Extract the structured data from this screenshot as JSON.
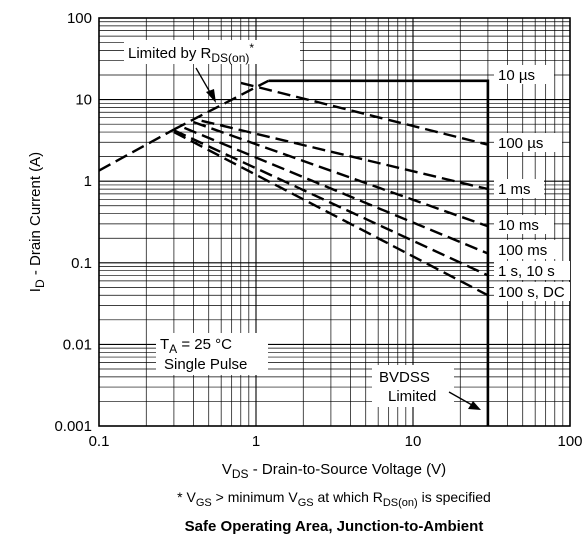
{
  "chart_data": {
    "type": "line",
    "title": "Safe Operating Area, Junction-to-Ambient",
    "xlabel": {
      "main": "V",
      "sub": "DS",
      "rest": " - Drain-to-Source Voltage (V)"
    },
    "ylabel": {
      "main": "I",
      "sub": "D",
      "rest": " - Drain Current (A)"
    },
    "x_scale": "log",
    "y_scale": "log",
    "xlim": [
      0.1,
      100
    ],
    "ylim": [
      0.001,
      100
    ],
    "grid": true,
    "x_ticks": [
      {
        "value": 0.1,
        "label": "0.1"
      },
      {
        "value": 1,
        "label": "1"
      },
      {
        "value": 10,
        "label": "10"
      },
      {
        "value": 100,
        "label": "100"
      }
    ],
    "y_ticks": [
      {
        "value": 100,
        "label": "100"
      },
      {
        "value": 10,
        "label": "10"
      },
      {
        "value": 1,
        "label": "1"
      },
      {
        "value": 0.1,
        "label": "0.1"
      },
      {
        "value": 0.01,
        "label": "0.01"
      },
      {
        "value": 0.001,
        "label": "0.001"
      }
    ],
    "series": [
      {
        "name": "10 µs",
        "style": "solid",
        "points": [
          [
            1.2,
            17
          ],
          [
            30,
            17
          ],
          [
            30,
            0.001
          ]
        ]
      },
      {
        "name": "",
        "style": "dashed",
        "points": [
          [
            0.1,
            1.35
          ],
          [
            0.3,
            4.3
          ]
        ]
      },
      {
        "name": "",
        "style": "dashed",
        "points": [
          [
            0.3,
            4.3
          ],
          [
            1.2,
            17
          ]
        ]
      },
      {
        "name": "100 µs",
        "style": "dashed",
        "points": [
          [
            0.8,
            16
          ],
          [
            30,
            2.8
          ]
        ]
      },
      {
        "name": "1 ms",
        "style": "dashed",
        "points": [
          [
            0.45,
            5.5
          ],
          [
            30,
            0.8
          ]
        ]
      },
      {
        "name": "10 ms",
        "style": "dashed",
        "points": [
          [
            0.4,
            5.3
          ],
          [
            30,
            0.28
          ]
        ]
      },
      {
        "name": "100 ms",
        "style": "dashed",
        "points": [
          [
            0.35,
            4.5
          ],
          [
            30,
            0.13
          ]
        ]
      },
      {
        "name": "1 s, 10 s",
        "style": "dashed",
        "points": [
          [
            0.3,
            4.2
          ],
          [
            30,
            0.07
          ]
        ]
      },
      {
        "name": "100 s, DC",
        "style": "dashed",
        "points": [
          [
            0.3,
            4.0
          ],
          [
            30,
            0.04
          ]
        ]
      }
    ],
    "annotations": {
      "rdson": {
        "pre": "Limited by R",
        "sub": "DS(on)",
        "post": "*"
      },
      "ta": {
        "pre": "T",
        "sub": "A",
        "post": " = 25 °C"
      },
      "single_pulse": "Single Pulse",
      "bvdss_line1": "BVDSS",
      "bvdss_line2": "Limited"
    },
    "footnote": {
      "p1": "* V",
      "s1": "GS",
      "p2": " > minimum V",
      "s2": "GS",
      "p3": " at which R",
      "s3": "DS(on)",
      "p4": " is specified"
    }
  }
}
